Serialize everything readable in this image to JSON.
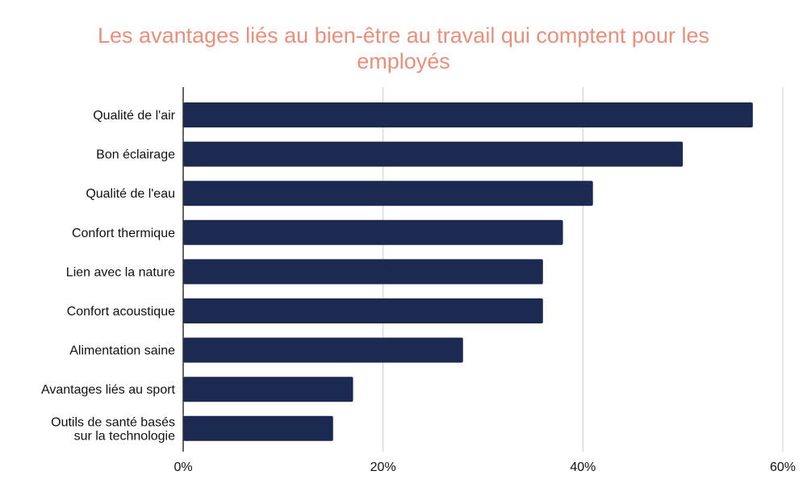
{
  "chart_data": {
    "type": "bar",
    "orientation": "horizontal",
    "title": "Les avantages liés au bien-être au travail qui comptent pour les employés",
    "title_lines": [
      "Les avantages liés au bien-être au travail qui comptent pour les",
      "employés"
    ],
    "categories": [
      [
        "Qualité de l'air"
      ],
      [
        "Bon éclairage"
      ],
      [
        "Qualité de l'eau"
      ],
      [
        "Confort thermique"
      ],
      [
        "Lien avec la nature"
      ],
      [
        "Confort acoustique"
      ],
      [
        "Alimentation saine"
      ],
      [
        "Avantages liés au sport"
      ],
      [
        "Outils de santé basés",
        "sur la technologie"
      ]
    ],
    "values": [
      57,
      50,
      41,
      38,
      36,
      36,
      28,
      17,
      15
    ],
    "unit": "%",
    "xlabel": "",
    "ylabel": "",
    "xlim": [
      0,
      60
    ],
    "xticks": [
      0,
      20,
      40,
      60
    ],
    "xtick_labels": [
      "0%",
      "20%",
      "40%",
      "60%"
    ],
    "grid": true,
    "legend": "none",
    "colors": {
      "bar": "#1c2951",
      "title": "#e8907e",
      "grid": "#cccccc",
      "axis": "#333333",
      "text": "#111111"
    }
  }
}
